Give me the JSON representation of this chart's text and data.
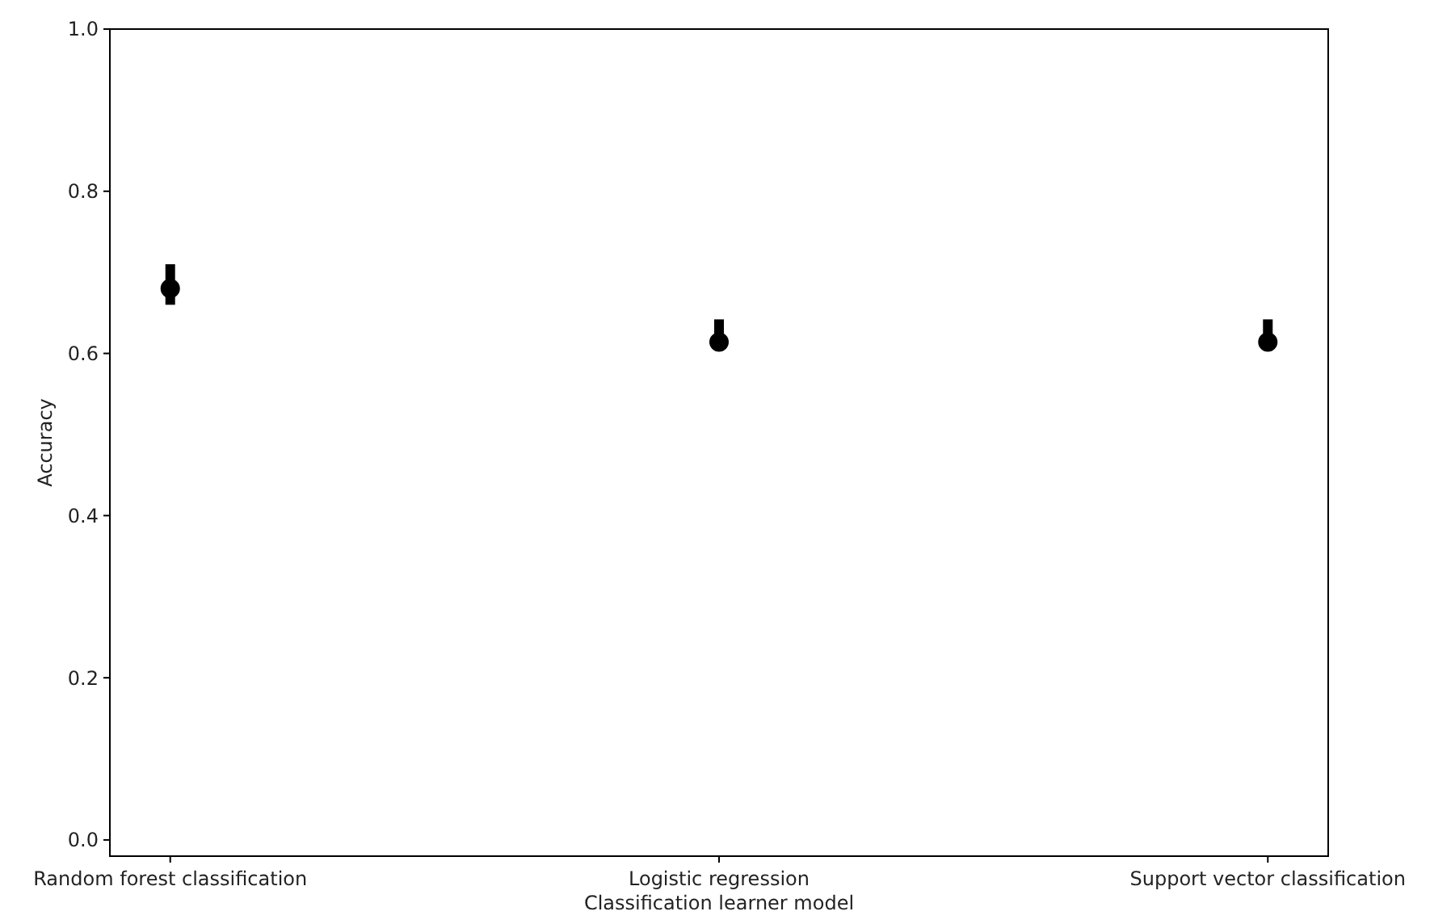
{
  "chart_data": {
    "type": "scatter",
    "xlabel": "Classification learner model",
    "ylabel": "Accuracy",
    "categories": [
      "Random forest classification",
      "Logistic regression",
      "Support vector classification"
    ],
    "values": [
      0.68,
      0.614,
      0.614
    ],
    "errors": [
      [
        0.66,
        0.71
      ],
      [
        0.605,
        0.642
      ],
      [
        0.605,
        0.642
      ]
    ],
    "color": "#000000",
    "marker": "circle",
    "ylim": [
      -0.02,
      1.0
    ],
    "yticks": [
      {
        "value": 0,
        "label": "0.0"
      },
      0.2,
      0.4,
      0.6,
      0.8,
      {
        "value": 1,
        "label": "1.0"
      }
    ],
    "grid": false
  }
}
